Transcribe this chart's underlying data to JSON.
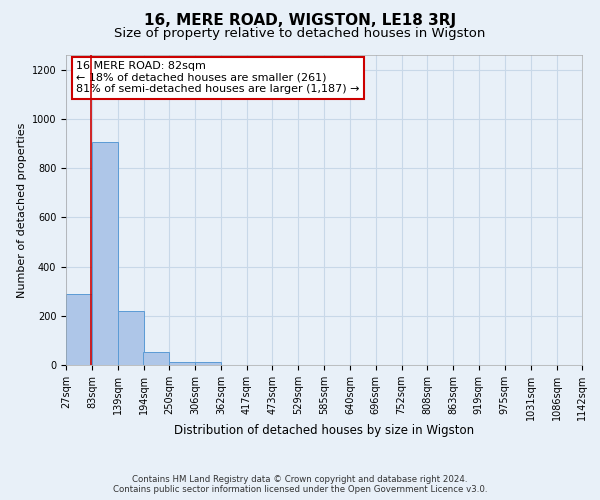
{
  "title": "16, MERE ROAD, WIGSTON, LE18 3RJ",
  "subtitle": "Size of property relative to detached houses in Wigston",
  "xlabel": "Distribution of detached houses by size in Wigston",
  "ylabel": "Number of detached properties",
  "footer_line1": "Contains HM Land Registry data © Crown copyright and database right 2024.",
  "footer_line2": "Contains public sector information licensed under the Open Government Licence v3.0.",
  "annotation_title": "16 MERE ROAD: 82sqm",
  "annotation_line2": "← 18% of detached houses are smaller (261)",
  "annotation_line3": "81% of semi-detached houses are larger (1,187) →",
  "property_sqm": 82,
  "bar_left_edges": [
    27,
    83,
    139,
    194,
    250,
    306,
    362,
    417,
    473,
    529,
    585,
    640,
    696,
    752,
    808,
    863,
    919,
    975,
    1031,
    1086
  ],
  "bin_width": 56,
  "bar_heights": [
    290,
    905,
    218,
    52,
    12,
    12,
    0,
    0,
    0,
    0,
    0,
    0,
    0,
    0,
    0,
    0,
    0,
    0,
    0,
    0
  ],
  "tick_labels": [
    "27sqm",
    "83sqm",
    "139sqm",
    "194sqm",
    "250sqm",
    "306sqm",
    "362sqm",
    "417sqm",
    "473sqm",
    "529sqm",
    "585sqm",
    "640sqm",
    "696sqm",
    "752sqm",
    "808sqm",
    "863sqm",
    "919sqm",
    "975sqm",
    "1031sqm",
    "1086sqm",
    "1142sqm"
  ],
  "bar_color": "#aec6e8",
  "bar_edge_color": "#5b9bd5",
  "red_line_x": 82,
  "ylim": [
    0,
    1260
  ],
  "yticks": [
    0,
    200,
    400,
    600,
    800,
    1000,
    1200
  ],
  "grid_color": "#c8d8e8",
  "background_color": "#e8f0f8",
  "axes_bg_color": "#e8f0f8",
  "annotation_box_color": "#ffffff",
  "annotation_box_edge_color": "#cc0000",
  "red_line_color": "#cc0000",
  "title_fontsize": 11,
  "subtitle_fontsize": 9.5,
  "xlabel_fontsize": 8.5,
  "ylabel_fontsize": 8,
  "tick_fontsize": 7,
  "annotation_fontsize": 8
}
